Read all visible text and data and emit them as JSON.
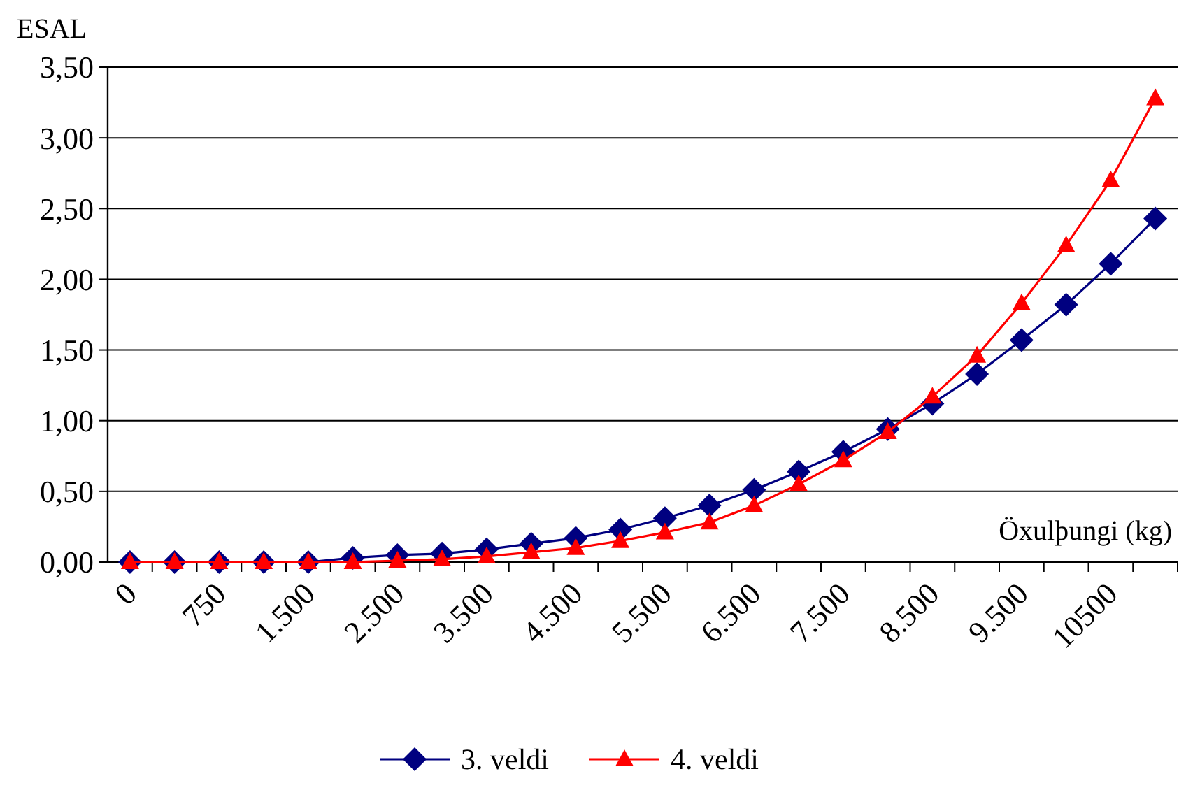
{
  "chart_data": {
    "type": "line",
    "xlabel": "Öxulþungi (kg)",
    "ylabel": "ESAL",
    "categories": [
      "0",
      null,
      "750",
      null,
      "1.500",
      null,
      "2.500",
      null,
      "3.500",
      null,
      "4.500",
      null,
      "5.500",
      null,
      "6.500",
      null,
      "7.500",
      null,
      "8.500",
      null,
      "9.500",
      null,
      "10500",
      null
    ],
    "series": [
      {
        "name": "3. veldi",
        "color": "#000080",
        "marker": "diamond",
        "values": [
          0,
          0,
          0,
          0,
          0,
          0.03,
          0.05,
          0.06,
          0.09,
          0.13,
          0.17,
          0.23,
          0.31,
          0.4,
          0.51,
          0.64,
          0.78,
          0.94,
          1.12,
          1.33,
          1.57,
          1.82,
          2.11,
          2.43
        ]
      },
      {
        "name": "4. veldi",
        "color": "#ff0000",
        "marker": "triangle",
        "values": [
          0,
          0,
          0,
          0,
          0,
          0,
          0.01,
          0.02,
          0.04,
          0.07,
          0.1,
          0.15,
          0.21,
          0.28,
          0.4,
          0.55,
          0.72,
          0.92,
          1.17,
          1.46,
          1.83,
          2.24,
          2.7,
          3.28
        ]
      }
    ],
    "ylim": [
      0,
      3.5
    ],
    "yticks": [
      {
        "value": 0,
        "label": "0,00"
      },
      {
        "value": 0.5,
        "label": "0,50"
      },
      {
        "value": 1,
        "label": "1,00"
      },
      {
        "value": 1.5,
        "label": "1,50"
      },
      {
        "value": 2,
        "label": "2,00"
      },
      {
        "value": 2.5,
        "label": "2,50"
      },
      {
        "value": 3,
        "label": "3,00"
      },
      {
        "value": 3.5,
        "label": "3,50"
      }
    ],
    "grid": "y",
    "legend": "bottom",
    "line_style": "solid"
  }
}
